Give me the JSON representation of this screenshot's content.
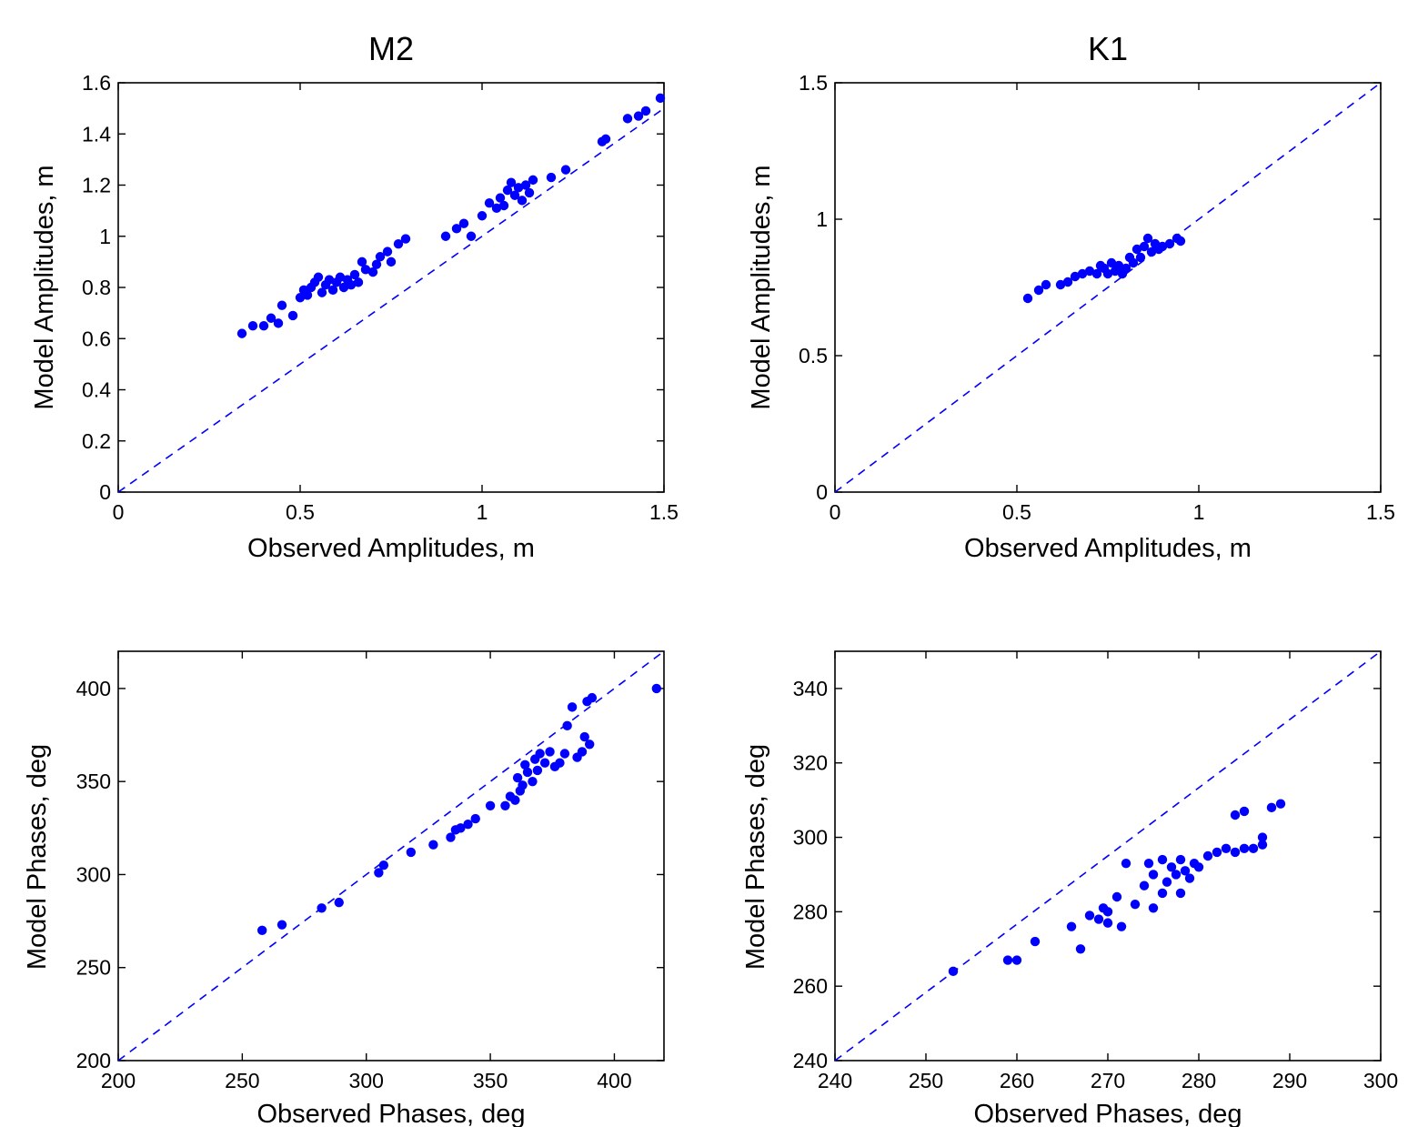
{
  "chart_data": [
    {
      "type": "scatter",
      "title": "M2",
      "xlabel": "Observed Amplitudes, m",
      "ylabel": "Model Amplitudes, m",
      "xlim": [
        0,
        1.5
      ],
      "ylim": [
        0,
        1.6
      ],
      "xticks": [
        0,
        0.5,
        1,
        1.5
      ],
      "yticks": [
        0,
        0.2,
        0.4,
        0.6,
        0.8,
        1,
        1.2,
        1.4,
        1.6
      ],
      "xtick_labels": [
        "0",
        "0.5",
        "1",
        "1.5"
      ],
      "ytick_labels": [
        "0",
        "0.2",
        "0.4",
        "0.6",
        "0.8",
        "1",
        "1.2",
        "1.4",
        "1.6"
      ],
      "reference_line": {
        "style": "dashed",
        "color": "#0000ff",
        "from": [
          0,
          0
        ],
        "to": [
          1.5,
          1.5
        ]
      },
      "marker_color": "#0000ff",
      "points": [
        [
          0.34,
          0.62
        ],
        [
          0.37,
          0.65
        ],
        [
          0.4,
          0.65
        ],
        [
          0.42,
          0.68
        ],
        [
          0.44,
          0.66
        ],
        [
          0.45,
          0.73
        ],
        [
          0.48,
          0.69
        ],
        [
          0.5,
          0.76
        ],
        [
          0.51,
          0.79
        ],
        [
          0.52,
          0.77
        ],
        [
          0.53,
          0.8
        ],
        [
          0.54,
          0.82
        ],
        [
          0.55,
          0.84
        ],
        [
          0.56,
          0.78
        ],
        [
          0.57,
          0.81
        ],
        [
          0.58,
          0.83
        ],
        [
          0.59,
          0.79
        ],
        [
          0.6,
          0.82
        ],
        [
          0.61,
          0.84
        ],
        [
          0.62,
          0.8
        ],
        [
          0.63,
          0.83
        ],
        [
          0.64,
          0.81
        ],
        [
          0.65,
          0.85
        ],
        [
          0.66,
          0.82
        ],
        [
          0.67,
          0.9
        ],
        [
          0.68,
          0.87
        ],
        [
          0.7,
          0.86
        ],
        [
          0.71,
          0.89
        ],
        [
          0.72,
          0.92
        ],
        [
          0.74,
          0.94
        ],
        [
          0.75,
          0.9
        ],
        [
          0.77,
          0.97
        ],
        [
          0.79,
          0.99
        ],
        [
          0.9,
          1.0
        ],
        [
          0.93,
          1.03
        ],
        [
          0.95,
          1.05
        ],
        [
          0.97,
          1.0
        ],
        [
          1.0,
          1.08
        ],
        [
          1.02,
          1.13
        ],
        [
          1.04,
          1.11
        ],
        [
          1.05,
          1.15
        ],
        [
          1.06,
          1.12
        ],
        [
          1.07,
          1.18
        ],
        [
          1.08,
          1.21
        ],
        [
          1.09,
          1.16
        ],
        [
          1.1,
          1.19
        ],
        [
          1.11,
          1.14
        ],
        [
          1.12,
          1.2
        ],
        [
          1.13,
          1.17
        ],
        [
          1.14,
          1.22
        ],
        [
          1.19,
          1.23
        ],
        [
          1.23,
          1.26
        ],
        [
          1.33,
          1.37
        ],
        [
          1.34,
          1.38
        ],
        [
          1.4,
          1.46
        ],
        [
          1.43,
          1.47
        ],
        [
          1.45,
          1.49
        ],
        [
          1.49,
          1.54
        ]
      ]
    },
    {
      "type": "scatter",
      "title": "K1",
      "xlabel": "Observed Amplitudes, m",
      "ylabel": "Model Amplitudes, m",
      "xlim": [
        0,
        1.5
      ],
      "ylim": [
        0,
        1.5
      ],
      "xticks": [
        0,
        0.5,
        1,
        1.5
      ],
      "yticks": [
        0,
        0.5,
        1,
        1.5
      ],
      "xtick_labels": [
        "0",
        "0.5",
        "1",
        "1.5"
      ],
      "ytick_labels": [
        "0",
        "0.5",
        "1",
        "1.5"
      ],
      "reference_line": {
        "style": "dashed",
        "color": "#0000ff",
        "from": [
          0,
          0
        ],
        "to": [
          1.5,
          1.5
        ]
      },
      "marker_color": "#0000ff",
      "points": [
        [
          0.53,
          0.71
        ],
        [
          0.56,
          0.74
        ],
        [
          0.58,
          0.76
        ],
        [
          0.62,
          0.76
        ],
        [
          0.64,
          0.77
        ],
        [
          0.66,
          0.79
        ],
        [
          0.68,
          0.8
        ],
        [
          0.7,
          0.81
        ],
        [
          0.72,
          0.8
        ],
        [
          0.73,
          0.83
        ],
        [
          0.74,
          0.82
        ],
        [
          0.75,
          0.8
        ],
        [
          0.76,
          0.84
        ],
        [
          0.77,
          0.81
        ],
        [
          0.78,
          0.83
        ],
        [
          0.79,
          0.8
        ],
        [
          0.8,
          0.82
        ],
        [
          0.81,
          0.86
        ],
        [
          0.82,
          0.84
        ],
        [
          0.83,
          0.89
        ],
        [
          0.84,
          0.86
        ],
        [
          0.85,
          0.9
        ],
        [
          0.86,
          0.93
        ],
        [
          0.87,
          0.88
        ],
        [
          0.88,
          0.91
        ],
        [
          0.89,
          0.89
        ],
        [
          0.9,
          0.9
        ],
        [
          0.92,
          0.91
        ],
        [
          0.94,
          0.93
        ],
        [
          0.95,
          0.92
        ]
      ]
    },
    {
      "type": "scatter",
      "title": "",
      "xlabel": "Observed Phases, deg",
      "ylabel": "Model Phases, deg",
      "xlim": [
        200,
        420
      ],
      "ylim": [
        200,
        420
      ],
      "xticks": [
        200,
        250,
        300,
        350,
        400
      ],
      "yticks": [
        200,
        250,
        300,
        350,
        400
      ],
      "xtick_labels": [
        "200",
        "250",
        "300",
        "350",
        "400"
      ],
      "ytick_labels": [
        "200",
        "250",
        "300",
        "350",
        "400"
      ],
      "reference_line": {
        "style": "dashed",
        "color": "#0000ff",
        "from": [
          200,
          200
        ],
        "to": [
          420,
          420
        ]
      },
      "marker_color": "#0000ff",
      "points": [
        [
          258,
          270
        ],
        [
          266,
          273
        ],
        [
          282,
          282
        ],
        [
          289,
          285
        ],
        [
          305,
          301
        ],
        [
          307,
          305
        ],
        [
          318,
          312
        ],
        [
          327,
          316
        ],
        [
          334,
          320
        ],
        [
          336,
          324
        ],
        [
          338,
          325
        ],
        [
          341,
          327
        ],
        [
          344,
          330
        ],
        [
          350,
          337
        ],
        [
          356,
          337
        ],
        [
          358,
          342
        ],
        [
          360,
          340
        ],
        [
          361,
          352
        ],
        [
          362,
          345
        ],
        [
          363,
          348
        ],
        [
          364,
          359
        ],
        [
          365,
          355
        ],
        [
          367,
          350
        ],
        [
          368,
          362
        ],
        [
          369,
          356
        ],
        [
          370,
          365
        ],
        [
          372,
          360
        ],
        [
          374,
          366
        ],
        [
          376,
          358
        ],
        [
          378,
          360
        ],
        [
          380,
          365
        ],
        [
          381,
          380
        ],
        [
          383,
          390
        ],
        [
          385,
          363
        ],
        [
          387,
          366
        ],
        [
          388,
          374
        ],
        [
          389,
          393
        ],
        [
          390,
          370
        ],
        [
          391,
          395
        ],
        [
          417,
          400
        ]
      ]
    },
    {
      "type": "scatter",
      "title": "",
      "xlabel": "Observed Phases, deg",
      "ylabel": "Model Phases, deg",
      "xlim": [
        240,
        300
      ],
      "ylim": [
        240,
        350
      ],
      "xticks": [
        240,
        250,
        260,
        270,
        280,
        290,
        300
      ],
      "yticks": [
        240,
        260,
        280,
        300,
        320,
        340
      ],
      "xtick_labels": [
        "240",
        "250",
        "260",
        "270",
        "280",
        "290",
        "300"
      ],
      "ytick_labels": [
        "240",
        "260",
        "280",
        "300",
        "320",
        "340"
      ],
      "reference_line": {
        "style": "dashed",
        "color": "#0000ff",
        "from": [
          240,
          240
        ],
        "to": [
          300,
          350
        ]
      },
      "marker_color": "#0000ff",
      "points": [
        [
          253,
          264
        ],
        [
          259,
          267
        ],
        [
          260,
          267
        ],
        [
          262,
          272
        ],
        [
          266,
          276
        ],
        [
          267,
          270
        ],
        [
          268,
          279
        ],
        [
          269,
          278
        ],
        [
          269.5,
          281
        ],
        [
          270,
          277
        ],
        [
          270,
          280
        ],
        [
          271,
          284
        ],
        [
          271.5,
          276
        ],
        [
          272,
          293
        ],
        [
          273,
          282
        ],
        [
          274,
          287
        ],
        [
          274.5,
          293
        ],
        [
          275,
          290
        ],
        [
          275,
          281
        ],
        [
          276,
          294
        ],
        [
          276,
          285
        ],
        [
          276.5,
          288
        ],
        [
          277,
          292
        ],
        [
          277.5,
          290
        ],
        [
          278,
          294
        ],
        [
          278,
          285
        ],
        [
          278.5,
          291
        ],
        [
          279,
          289
        ],
        [
          279.5,
          293
        ],
        [
          280,
          292
        ],
        [
          281,
          295
        ],
        [
          282,
          296
        ],
        [
          283,
          297
        ],
        [
          284,
          306
        ],
        [
          284,
          296
        ],
        [
          285,
          307
        ],
        [
          285,
          297
        ],
        [
          286,
          297
        ],
        [
          287,
          298
        ],
        [
          287,
          300
        ],
        [
          288,
          308
        ],
        [
          289,
          309
        ]
      ]
    }
  ]
}
